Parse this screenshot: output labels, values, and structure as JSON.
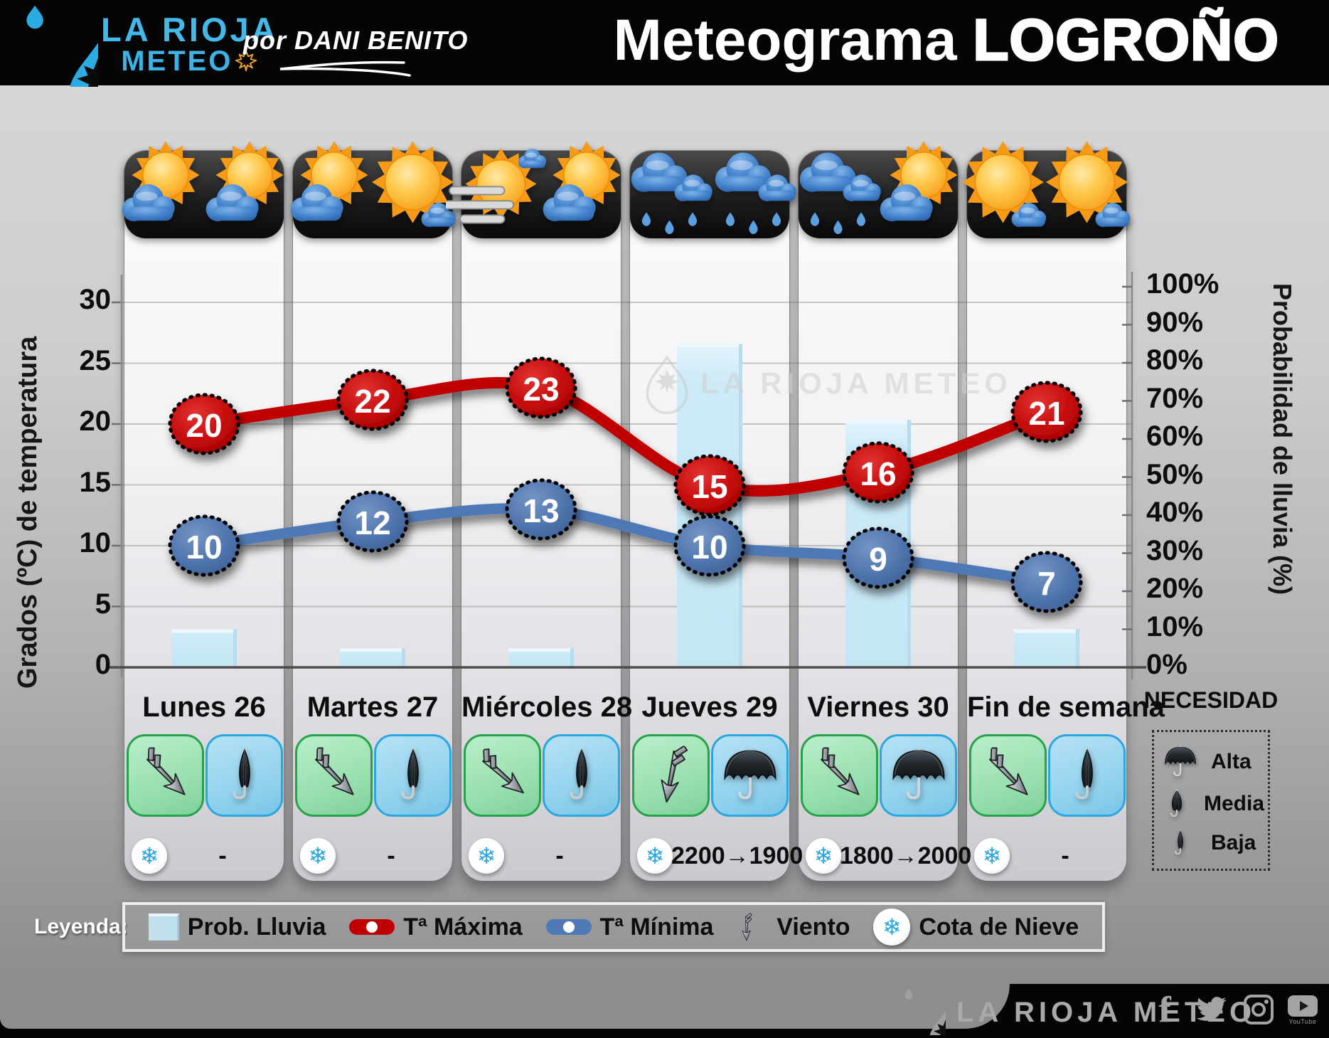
{
  "header": {
    "brand_top": "LA RIOJA",
    "brand_bottom": "METEO",
    "byline": "por DANI BENITO",
    "title_normal": "Meteograma",
    "title_bold": "LOGROÑO"
  },
  "chart_data": {
    "type": "combo",
    "title": "Meteograma LOGROÑO",
    "categories": [
      "Lunes 26",
      "Martes 27",
      "Miércoles 28",
      "Jueves 29",
      "Viernes 30",
      "Fin de semana"
    ],
    "series": [
      {
        "name": "Prob. Lluvia",
        "type": "bar",
        "axis": "right",
        "unit": "%",
        "values": [
          10,
          5,
          5,
          85,
          65,
          10
        ],
        "color": "#cdeaf7"
      },
      {
        "name": "Tª Máxima",
        "type": "line",
        "axis": "left",
        "unit": "ºC",
        "values": [
          20,
          22,
          23,
          15,
          16,
          21
        ],
        "color": "#c00000"
      },
      {
        "name": "Tª Mínima",
        "type": "line",
        "axis": "left",
        "unit": "ºC",
        "values": [
          10,
          12,
          13,
          10,
          9,
          7
        ],
        "color": "#4f79b5"
      }
    ],
    "left_axis": {
      "title": "Grados (ºC) de temperatura",
      "ticks": [
        0,
        5,
        10,
        15,
        20,
        25,
        30
      ],
      "range": [
        0,
        30
      ]
    },
    "right_axis": {
      "title": "Probabilidad de lluvia (%)",
      "ticks": [
        0,
        10,
        20,
        30,
        40,
        50,
        60,
        70,
        80,
        90,
        100
      ],
      "range": [
        0,
        100
      ]
    },
    "grid": true,
    "legend_position": "bottom",
    "watermark": "LA RIOJA METEO"
  },
  "days": [
    {
      "label": "Lunes 26",
      "icons": [
        "partly",
        "partly"
      ],
      "wind_deg": -45,
      "umbrella": "closed",
      "snow": "-"
    },
    {
      "label": "Martes 27",
      "icons": [
        "partly",
        "sunny-cloud"
      ],
      "wind_deg": -45,
      "umbrella": "closed",
      "snow": "-"
    },
    {
      "label": "Miércoles 28",
      "icons": [
        "wind-sun",
        "partly"
      ],
      "wind_deg": -50,
      "umbrella": "closed",
      "snow": "-"
    },
    {
      "label": "Jueves 29",
      "icons": [
        "rain",
        "rain"
      ],
      "wind_deg": 10,
      "umbrella": "open",
      "snow": "2200→1900"
    },
    {
      "label": "Viernes 30",
      "icons": [
        "rain",
        "partly"
      ],
      "wind_deg": -45,
      "umbrella": "open",
      "snow": "1800→2000"
    },
    {
      "label": "Fin de semana",
      "icons": [
        "sunny-cloud",
        "sunny-cloud"
      ],
      "wind_deg": -45,
      "umbrella": "closed",
      "snow": "-"
    }
  ],
  "necesidad": {
    "title": "NECESIDAD",
    "items": [
      {
        "umbrella": "open",
        "label": "Alta"
      },
      {
        "umbrella": "half",
        "label": "Media"
      },
      {
        "umbrella": "closed",
        "label": "Baja"
      }
    ]
  },
  "legend": {
    "title": "Leyenda:",
    "items": [
      {
        "swatch": "bar",
        "label": "Prob. Lluvia"
      },
      {
        "swatch": "tmax",
        "label": "Tª Máxima"
      },
      {
        "swatch": "tmin",
        "label": "Tª Mínima"
      },
      {
        "swatch": "wind",
        "label": "Viento"
      },
      {
        "swatch": "snow",
        "label": "Cota de Nieve"
      }
    ]
  },
  "footer": {
    "brand": "LA RIOJA METEO",
    "youtube_caption": "YouTube",
    "social": [
      "facebook",
      "twitter",
      "instagram",
      "youtube"
    ]
  },
  "icons": {
    "snowflake": "❄",
    "facebook": "f"
  },
  "colors": {
    "tmax": "#c00000",
    "tmin": "#4f79b5",
    "prob_bar": "#cdeaf7",
    "snowflake": "#2ba5dc",
    "brand_blue": "#45b8ea",
    "wind_box": "#93dcab",
    "umb_box": "#8ed0ec",
    "header_bg": "#050505"
  }
}
